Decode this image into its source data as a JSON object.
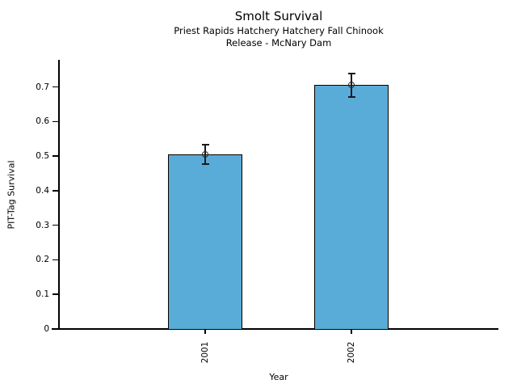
{
  "chart_data": {
    "type": "bar",
    "title": "Smolt Survival",
    "subtitle_lines": [
      "Priest Rapids Hatchery Hatchery Fall Chinook",
      "Release - McNary Dam"
    ],
    "xlabel": "Year",
    "ylabel": "PIT-Tag Survival",
    "categories": [
      "2001",
      "2002"
    ],
    "values": [
      0.505,
      0.705
    ],
    "error_bars": [
      0.028,
      0.034
    ],
    "yticks": [
      0,
      0.1,
      0.2,
      0.3,
      0.4,
      0.5,
      0.6,
      0.7
    ],
    "ytick_labels": [
      "0",
      "0.1",
      "0.2",
      "0.3",
      "0.4",
      "0.5",
      "0.6",
      "0.7"
    ],
    "ylim": [
      0,
      0.778
    ],
    "grid": false,
    "legend": "none",
    "marker": "open-circle",
    "colors": {
      "bar_fill": "#5AACD8",
      "bar_edge": "#000000",
      "error": "#1a1a1a",
      "text": "#000000",
      "background": "#ffffff"
    }
  }
}
